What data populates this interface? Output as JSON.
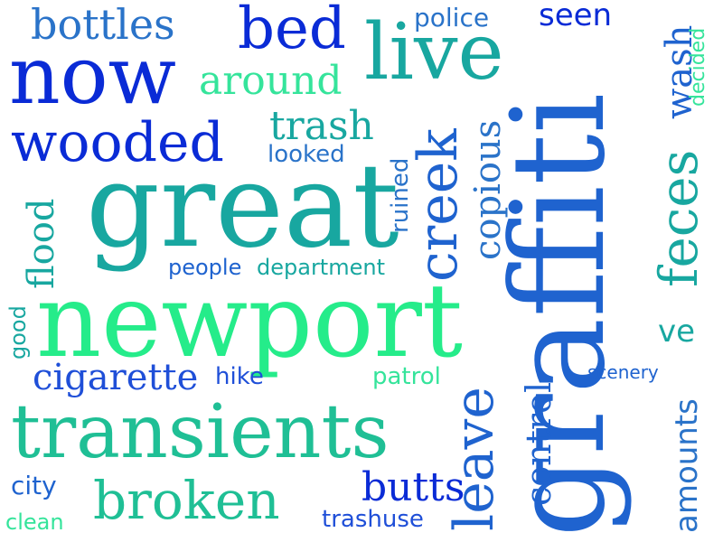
{
  "colors": {
    "background": "#ffffff",
    "blue_deep": "#0a2bd6",
    "blue_royal": "#1f4fd8",
    "blue_mid": "#1f63cf",
    "blue_soft": "#2a73c9",
    "teal": "#18a7a0",
    "teal_green": "#1fbf95",
    "green_bright": "#25ec8a",
    "green_soft": "#35e49b"
  },
  "words": [
    "newport",
    "graffiti",
    "great",
    "transients",
    "now",
    "live",
    "wooded",
    "bed",
    "broken",
    "creek",
    "leave",
    "feces",
    "bottles",
    "around",
    "trash",
    "copious",
    "control",
    "amounts",
    "cigarette",
    "butts",
    "flood",
    "seen",
    "police",
    "wash",
    "decided",
    "looked",
    "ruined",
    "people",
    "department",
    "good",
    "hike",
    "patrol",
    "ve",
    "scenery",
    "city",
    "clean",
    "trashuse"
  ]
}
